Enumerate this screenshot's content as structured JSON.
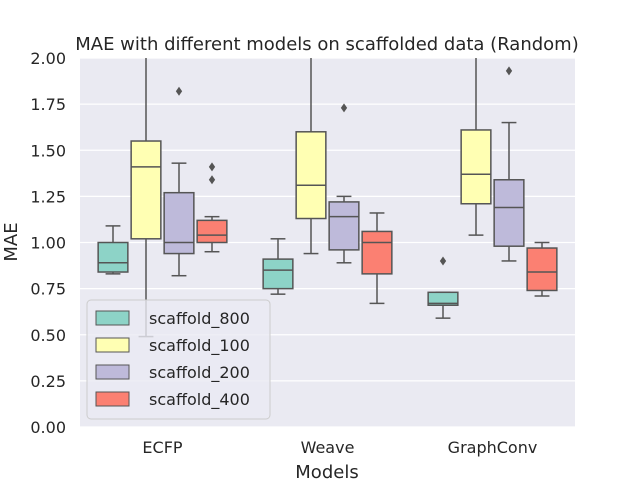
{
  "chart_data": {
    "type": "box",
    "title": "MAE with different models on scaffolded data (Random)",
    "xlabel": "Models",
    "ylabel": "MAE",
    "ylim": [
      0,
      2.0
    ],
    "yticks": [
      "0.00",
      "0.25",
      "0.50",
      "0.75",
      "1.00",
      "1.25",
      "1.50",
      "1.75",
      "2.00"
    ],
    "categories": [
      "ECFP",
      "Weave",
      "GraphConv"
    ],
    "grid": true,
    "legend_position": "lower-left",
    "series": [
      {
        "name": "scaffold_800",
        "color": "#8dd3c7",
        "boxes": [
          {
            "whisker_low": 0.83,
            "q1": 0.84,
            "median": 0.89,
            "q3": 1.0,
            "whisker_high": 1.09,
            "outliers": []
          },
          {
            "whisker_low": 0.72,
            "q1": 0.75,
            "median": 0.85,
            "q3": 0.91,
            "whisker_high": 1.02,
            "outliers": []
          },
          {
            "whisker_low": 0.59,
            "q1": 0.66,
            "median": 0.67,
            "q3": 0.73,
            "whisker_high": 0.73,
            "outliers": [
              0.9
            ]
          }
        ]
      },
      {
        "name": "scaffold_100",
        "color": "#ffffb3",
        "boxes": [
          {
            "whisker_low": 0.49,
            "q1": 1.02,
            "median": 1.41,
            "q3": 1.55,
            "whisker_high": 2.0,
            "outliers": []
          },
          {
            "whisker_low": 0.94,
            "q1": 1.13,
            "median": 1.31,
            "q3": 1.6,
            "whisker_high": 2.0,
            "outliers": []
          },
          {
            "whisker_low": 1.04,
            "q1": 1.21,
            "median": 1.37,
            "q3": 1.61,
            "whisker_high": 2.0,
            "outliers": []
          }
        ]
      },
      {
        "name": "scaffold_200",
        "color": "#bebada",
        "boxes": [
          {
            "whisker_low": 0.82,
            "q1": 0.94,
            "median": 1.0,
            "q3": 1.27,
            "whisker_high": 1.43,
            "outliers": [
              1.82
            ]
          },
          {
            "whisker_low": 0.89,
            "q1": 0.96,
            "median": 1.14,
            "q3": 1.22,
            "whisker_high": 1.25,
            "outliers": [
              1.73
            ]
          },
          {
            "whisker_low": 0.9,
            "q1": 0.98,
            "median": 1.19,
            "q3": 1.34,
            "whisker_high": 1.65,
            "outliers": [
              1.93
            ]
          }
        ]
      },
      {
        "name": "scaffold_400",
        "color": "#fb8072",
        "boxes": [
          {
            "whisker_low": 0.95,
            "q1": 1.0,
            "median": 1.04,
            "q3": 1.12,
            "whisker_high": 1.14,
            "outliers": [
              1.34,
              1.41
            ]
          },
          {
            "whisker_low": 0.67,
            "q1": 0.83,
            "median": 1.0,
            "q3": 1.06,
            "whisker_high": 1.16,
            "outliers": []
          },
          {
            "whisker_low": 0.71,
            "q1": 0.74,
            "median": 0.84,
            "q3": 0.97,
            "whisker_high": 1.0,
            "outliers": []
          }
        ]
      }
    ]
  }
}
